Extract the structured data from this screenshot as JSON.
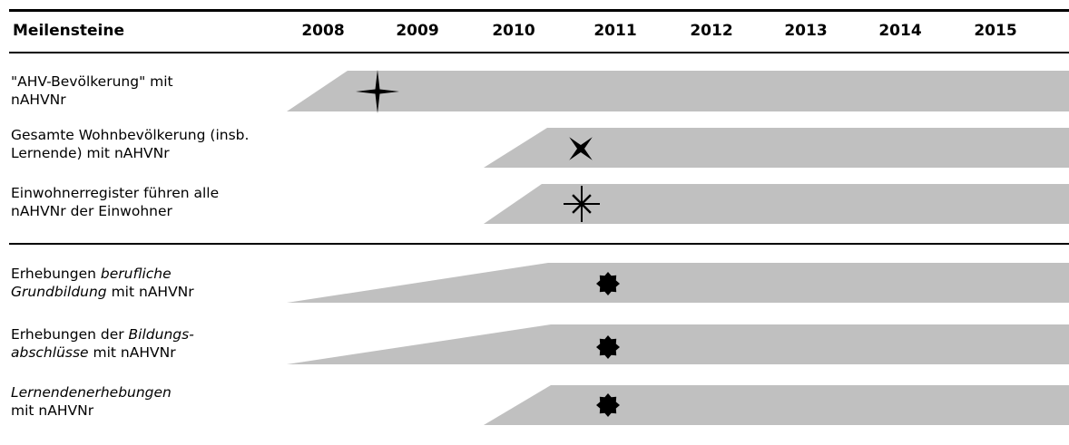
{
  "header": {
    "label": "Meilensteine",
    "years": [
      "2008",
      "2009",
      "2010",
      "2011",
      "2012",
      "2013",
      "2014",
      "2015"
    ]
  },
  "rows": [
    {
      "label_parts": [
        {
          "text": "\"AHV-Bevölkerung\" mit",
          "italic": false
        },
        {
          "br": true
        },
        {
          "text": "nAHVNr",
          "italic": false
        }
      ],
      "milestone": "2009",
      "marker": "four-point-star-icon"
    },
    {
      "label_parts": [
        {
          "text": "Gesamte Wohnbevölkerung (insb.",
          "italic": false
        },
        {
          "br": true
        },
        {
          "text": "Lernende) mit nAHVNr",
          "italic": false
        }
      ],
      "milestone": "2011",
      "marker": "x-cross-icon"
    },
    {
      "label_parts": [
        {
          "text": "Einwohnerregister führen alle",
          "italic": false
        },
        {
          "br": true
        },
        {
          "text": "nAHVNr der Einwohner",
          "italic": false
        }
      ],
      "milestone": "2011",
      "marker": "asterisk-burst-icon"
    },
    {
      "label_parts": [
        {
          "text": "Erhebungen ",
          "italic": false
        },
        {
          "text": "berufliche",
          "italic": true
        },
        {
          "br": true
        },
        {
          "text": "Grundbildung",
          "italic": true
        },
        {
          "text": " mit nAHVNr",
          "italic": false
        }
      ],
      "milestone": "2011",
      "marker": "eight-point-star-icon"
    },
    {
      "label_parts": [
        {
          "text": "Erhebungen der ",
          "italic": false
        },
        {
          "text": "Bildungs-",
          "italic": true
        },
        {
          "br": true
        },
        {
          "text": "abschlüsse",
          "italic": true
        },
        {
          "text": " mit nAHVNr",
          "italic": false
        }
      ],
      "milestone": "2011",
      "marker": "eight-point-star-icon"
    },
    {
      "label_parts": [
        {
          "text": "Lernendenerhebungen",
          "italic": true
        },
        {
          "br": true
        },
        {
          "text": "mit nAHVNr",
          "italic": false
        }
      ],
      "milestone": "2011",
      "marker": "eight-point-star-icon"
    }
  ],
  "colors": {
    "bar": "#c0c0c0",
    "marker": "#000000",
    "rule": "#000000"
  }
}
